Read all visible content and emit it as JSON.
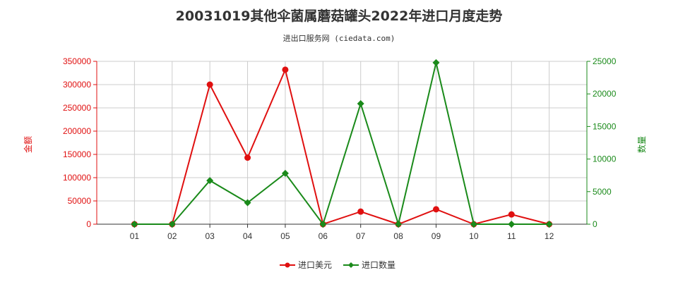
{
  "chart_data": {
    "type": "line",
    "title": "20031019其他伞菌属蘑菇罐头2022年进口月度走势",
    "subtitle": "进出口服务网 (ciedata.com)",
    "categories": [
      "01",
      "02",
      "03",
      "04",
      "05",
      "06",
      "07",
      "08",
      "09",
      "10",
      "11",
      "12"
    ],
    "y_left": {
      "label": "金额",
      "ylim": [
        0,
        350000
      ],
      "ticks": [
        0,
        50000,
        100000,
        150000,
        200000,
        250000,
        300000,
        350000
      ],
      "color": "#e01010"
    },
    "y_right": {
      "label": "数量",
      "ylim": [
        0,
        25000
      ],
      "ticks": [
        0,
        5000,
        10000,
        15000,
        20000,
        25000
      ],
      "color": "#1a8a1a"
    },
    "series": [
      {
        "name": "进口美元",
        "axis": "left",
        "color": "#e01010",
        "marker": "circle",
        "values": [
          0,
          0,
          300000,
          143000,
          332000,
          0,
          27000,
          0,
          32000,
          0,
          21000,
          0
        ]
      },
      {
        "name": "进口数量",
        "axis": "right",
        "color": "#1a8a1a",
        "marker": "diamond",
        "values": [
          0,
          0,
          6700,
          3300,
          7800,
          0,
          18500,
          0,
          24800,
          0,
          0,
          0
        ]
      }
    ],
    "grid": true,
    "legend": "bottom"
  }
}
